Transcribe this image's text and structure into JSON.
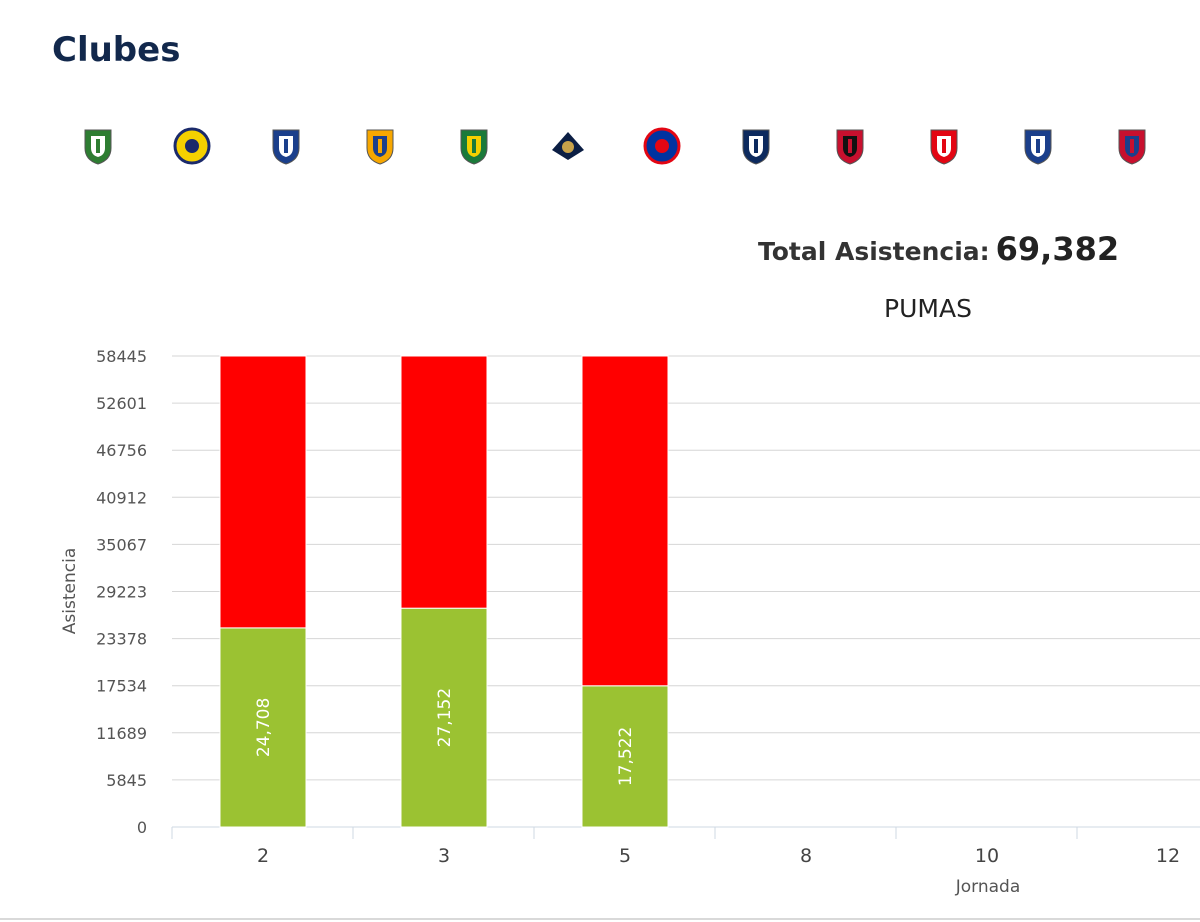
{
  "page": {
    "section_title": "Clubes"
  },
  "clubs": [
    {
      "icon": "santos-crest-icon",
      "colors": [
        "#2e7d32",
        "#ffffff"
      ]
    },
    {
      "icon": "america-crest-icon",
      "colors": [
        "#f5d000",
        "#1b2a6b"
      ]
    },
    {
      "icon": "queretaro-crest-icon",
      "colors": [
        "#1b3f8b",
        "#ffffff"
      ]
    },
    {
      "icon": "tigres-crest-icon",
      "colors": [
        "#f7a700",
        "#1b3f8b"
      ]
    },
    {
      "icon": "leon-crest-icon",
      "colors": [
        "#1a7a3a",
        "#f4d000"
      ]
    },
    {
      "icon": "pumas-crest-icon",
      "colors": [
        "#0b1e44",
        "#c8a24a"
      ]
    },
    {
      "icon": "cruz-azul-crest-icon",
      "colors": [
        "#0033a0",
        "#e30613"
      ]
    },
    {
      "icon": "monterrey-crest-icon",
      "colors": [
        "#0d2a5e",
        "#ffffff"
      ]
    },
    {
      "icon": "atlas-crest-icon",
      "colors": [
        "#c8102e",
        "#111111"
      ]
    },
    {
      "icon": "necaxa-crest-icon",
      "colors": [
        "#e30613",
        "#ffffff"
      ]
    },
    {
      "icon": "pachuca-crest-icon",
      "colors": [
        "#1b3f8b",
        "#ffffff"
      ]
    },
    {
      "icon": "chivas-crest-icon",
      "colors": [
        "#c8102e",
        "#1b3f8b"
      ]
    }
  ],
  "summary": {
    "total_label": "Total Asistencia:",
    "total_value": "69,382"
  },
  "chart_data": {
    "type": "bar",
    "stacked": true,
    "title": "PUMAS",
    "xlabel": "Jornada",
    "ylabel": "Asistencia",
    "categories": [
      "2",
      "3",
      "5",
      "8",
      "10",
      "12"
    ],
    "ylim": [
      0,
      58445
    ],
    "yticks": [
      "0",
      "5845",
      "11689",
      "17534",
      "23378",
      "29223",
      "35067",
      "40912",
      "46756",
      "52601",
      "58445"
    ],
    "grid": true,
    "series": [
      {
        "values": [
          24708,
          27152,
          17522,
          null,
          null,
          null
        ],
        "color": "#9bc232",
        "labels": [
          "24,708",
          "27,152",
          "17,522"
        ]
      },
      {
        "values": [
          33737,
          31293,
          40923,
          null,
          null,
          null
        ],
        "color": "#ff0000"
      }
    ]
  }
}
